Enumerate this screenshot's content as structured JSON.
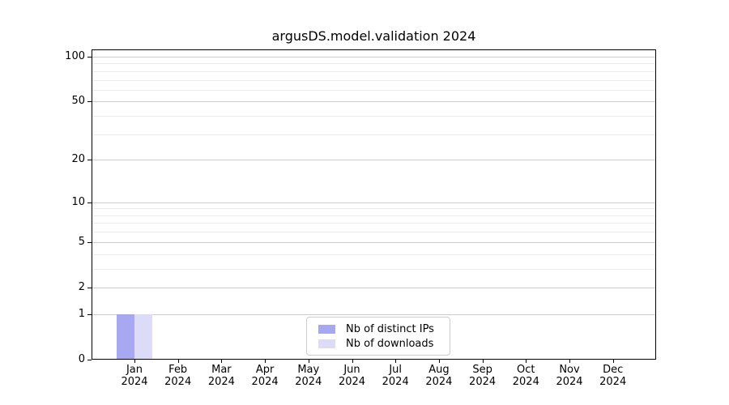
{
  "chart_data": {
    "type": "bar",
    "title": "argusDS.model.validation 2024",
    "categories": [
      "Jan",
      "Feb",
      "Mar",
      "Apr",
      "May",
      "Jun",
      "Jul",
      "Aug",
      "Sep",
      "Oct",
      "Nov",
      "Dec"
    ],
    "category_sublabel": "2024",
    "series": [
      {
        "name": "Nb of distinct IPs",
        "color": "#a8a8f2",
        "values": [
          1,
          0,
          0,
          0,
          0,
          0,
          0,
          0,
          0,
          0,
          0,
          0
        ]
      },
      {
        "name": "Nb of downloads",
        "color": "#dcdcf8",
        "values": [
          1,
          0,
          0,
          0,
          0,
          0,
          0,
          0,
          0,
          0,
          0,
          0
        ]
      }
    ],
    "yscale": "log1p",
    "ylim": [
      0,
      100
    ],
    "y_major_ticks": [
      0,
      1,
      2,
      5,
      10,
      20,
      50,
      100
    ],
    "y_minor_ticks": [
      3,
      4,
      6,
      7,
      8,
      9,
      30,
      40,
      60,
      70,
      80,
      90
    ],
    "grid": true,
    "legend_position": "lower center",
    "colors": {
      "grid_major": "#cccccc",
      "grid_minor": "#ececec",
      "axis": "#000000",
      "legend_border": "#cccccc",
      "text": "#000000"
    }
  }
}
